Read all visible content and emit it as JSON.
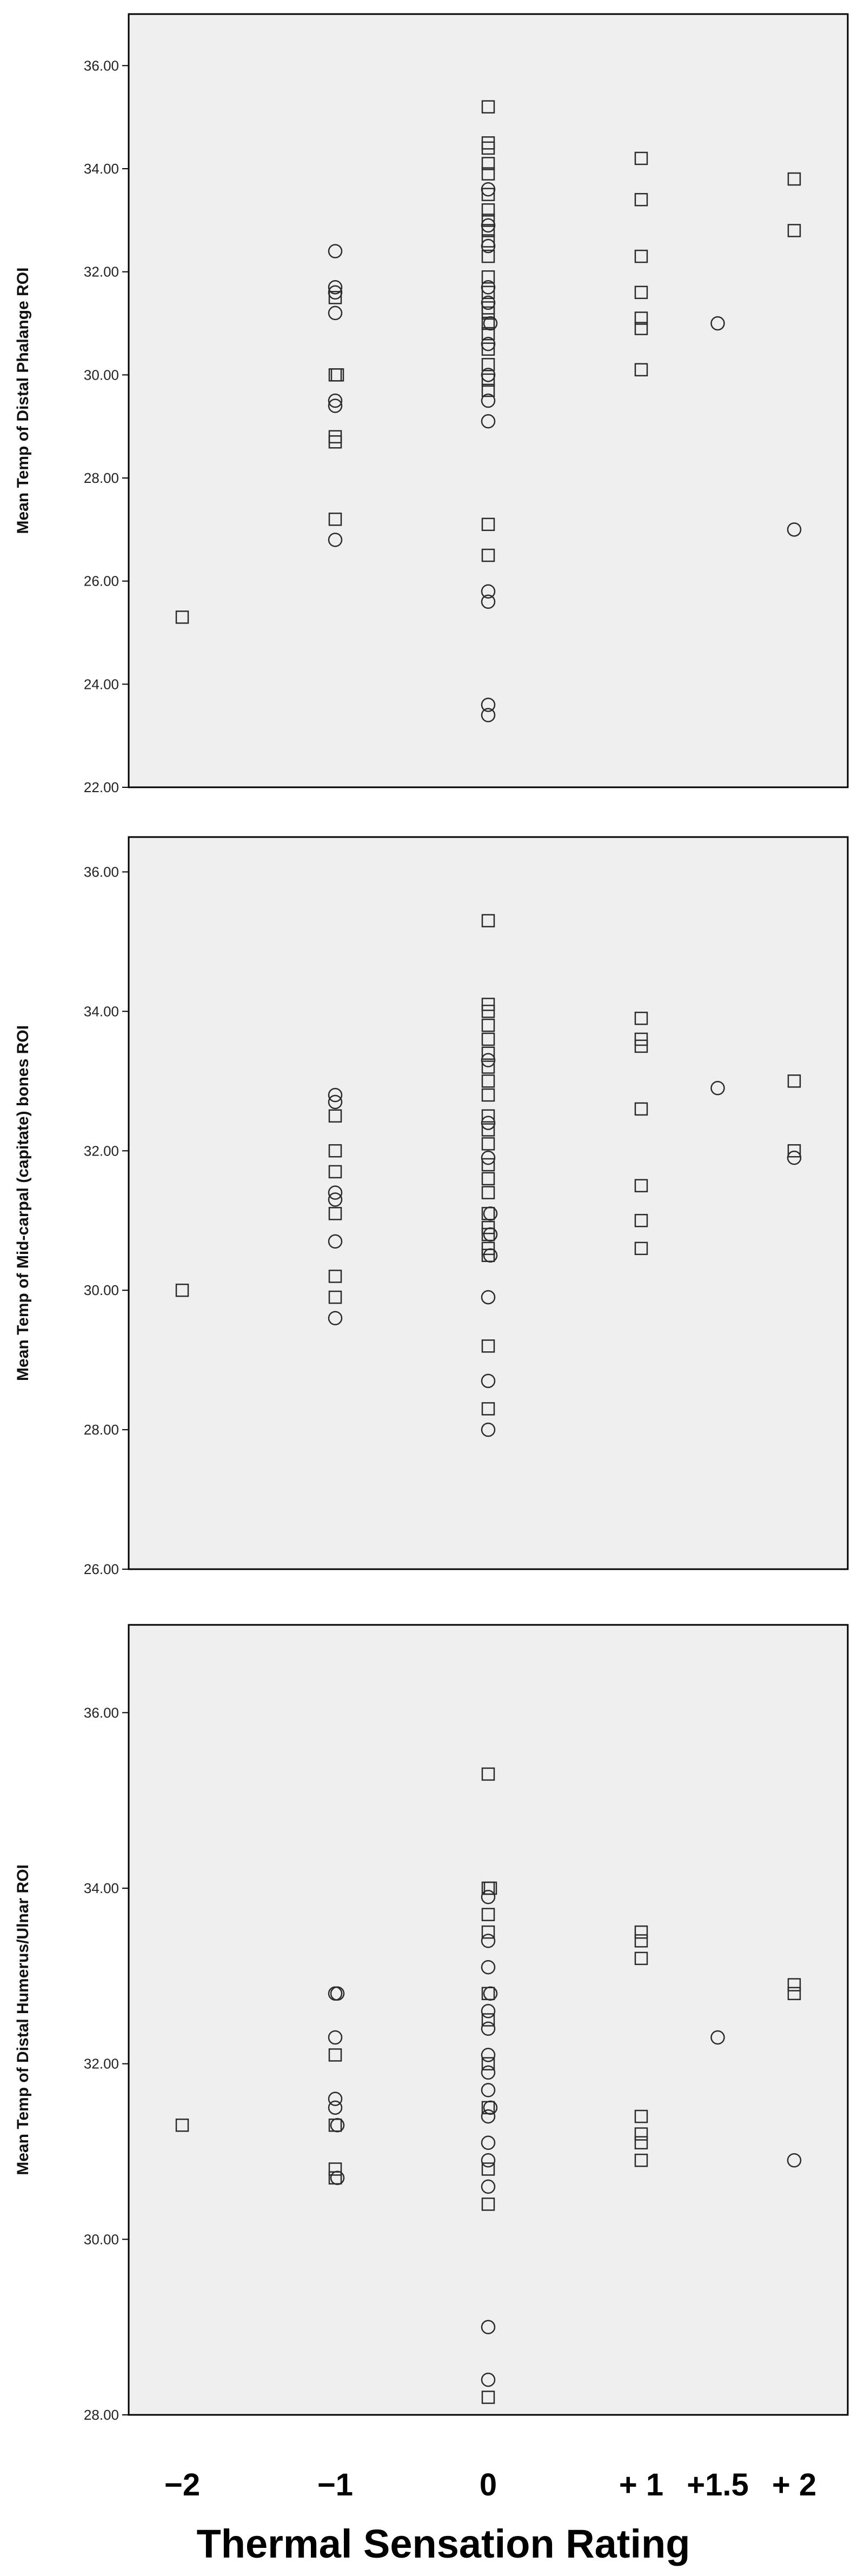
{
  "chart_data": [
    {
      "type": "scatter",
      "ylabel": "Mean Temp of Distal Phalange ROI",
      "ylim": [
        22,
        37
      ],
      "yticks": [
        "22.00",
        "24.00",
        "26.00",
        "28.00",
        "30.00",
        "32.00",
        "34.00",
        "36.00"
      ],
      "grid": false,
      "series": [
        {
          "marker": "square",
          "points": [
            [
              -2,
              25.3
            ],
            [
              -1,
              30.0
            ],
            [
              -1,
              30.0
            ],
            [
              -1,
              28.8
            ],
            [
              -1,
              28.7
            ],
            [
              -1,
              27.2
            ],
            [
              -1,
              31.5
            ],
            [
              0,
              35.2
            ],
            [
              0,
              34.5
            ],
            [
              0,
              34.4
            ],
            [
              0,
              34.1
            ],
            [
              0,
              33.9
            ],
            [
              0,
              33.5
            ],
            [
              0,
              33.2
            ],
            [
              0,
              33.0
            ],
            [
              0,
              32.8
            ],
            [
              0,
              32.6
            ],
            [
              0,
              32.3
            ],
            [
              0,
              31.9
            ],
            [
              0,
              31.6
            ],
            [
              0,
              31.3
            ],
            [
              0,
              31.2
            ],
            [
              0,
              31.0
            ],
            [
              0,
              30.8
            ],
            [
              0,
              30.5
            ],
            [
              0,
              30.2
            ],
            [
              0,
              29.9
            ],
            [
              0,
              29.7
            ],
            [
              0,
              27.1
            ],
            [
              0,
              26.5
            ],
            [
              1,
              34.2
            ],
            [
              1,
              33.4
            ],
            [
              1,
              32.3
            ],
            [
              1,
              31.6
            ],
            [
              1,
              31.1
            ],
            [
              1,
              30.9
            ],
            [
              1,
              30.1
            ],
            [
              2,
              33.8
            ],
            [
              2,
              32.8
            ]
          ]
        },
        {
          "marker": "circle",
          "points": [
            [
              -1,
              32.4
            ],
            [
              -1,
              31.7
            ],
            [
              -1,
              31.6
            ],
            [
              -1,
              31.2
            ],
            [
              -1,
              29.5
            ],
            [
              -1,
              29.4
            ],
            [
              -1,
              26.8
            ],
            [
              0,
              33.6
            ],
            [
              0,
              32.9
            ],
            [
              0,
              32.5
            ],
            [
              0,
              31.7
            ],
            [
              0,
              31.4
            ],
            [
              0,
              31.0
            ],
            [
              0,
              30.6
            ],
            [
              0,
              30.0
            ],
            [
              0,
              29.5
            ],
            [
              0,
              29.1
            ],
            [
              0,
              25.8
            ],
            [
              0,
              25.6
            ],
            [
              0,
              23.6
            ],
            [
              0,
              23.4
            ],
            [
              1.5,
              31.0
            ],
            [
              2,
              27.0
            ]
          ]
        }
      ]
    },
    {
      "type": "scatter",
      "ylabel": "Mean Temp of Mid-carpal (capitate) bones ROI",
      "ylim": [
        26,
        36.5
      ],
      "yticks": [
        "26.00",
        "28.00",
        "30.00",
        "32.00",
        "34.00",
        "36.00"
      ],
      "grid": false,
      "series": [
        {
          "marker": "square",
          "points": [
            [
              -2,
              30.0
            ],
            [
              -1,
              32.5
            ],
            [
              -1,
              32.0
            ],
            [
              -1,
              31.7
            ],
            [
              -1,
              31.1
            ],
            [
              -1,
              30.2
            ],
            [
              -1,
              29.9
            ],
            [
              0,
              35.3
            ],
            [
              0,
              34.1
            ],
            [
              0,
              34.0
            ],
            [
              0,
              33.8
            ],
            [
              0,
              33.6
            ],
            [
              0,
              33.4
            ],
            [
              0,
              33.2
            ],
            [
              0,
              33.0
            ],
            [
              0,
              32.8
            ],
            [
              0,
              32.5
            ],
            [
              0,
              32.3
            ],
            [
              0,
              32.1
            ],
            [
              0,
              31.8
            ],
            [
              0,
              31.6
            ],
            [
              0,
              31.4
            ],
            [
              0,
              31.1
            ],
            [
              0,
              30.9
            ],
            [
              0,
              30.8
            ],
            [
              0,
              30.6
            ],
            [
              0,
              30.5
            ],
            [
              0,
              29.2
            ],
            [
              0,
              28.3
            ],
            [
              1,
              33.9
            ],
            [
              1,
              33.6
            ],
            [
              1,
              33.5
            ],
            [
              1,
              32.6
            ],
            [
              1,
              31.5
            ],
            [
              1,
              31.0
            ],
            [
              1,
              30.6
            ],
            [
              2,
              33.0
            ],
            [
              2,
              32.0
            ]
          ]
        },
        {
          "marker": "circle",
          "points": [
            [
              -1,
              32.8
            ],
            [
              -1,
              32.7
            ],
            [
              -1,
              31.4
            ],
            [
              -1,
              31.3
            ],
            [
              -1,
              30.7
            ],
            [
              -1,
              29.6
            ],
            [
              0,
              33.3
            ],
            [
              0,
              32.4
            ],
            [
              0,
              31.9
            ],
            [
              0,
              31.1
            ],
            [
              0,
              30.8
            ],
            [
              0,
              30.5
            ],
            [
              0,
              29.9
            ],
            [
              0,
              28.7
            ],
            [
              0,
              28.0
            ],
            [
              1.5,
              32.9
            ],
            [
              2,
              31.9
            ]
          ]
        }
      ]
    },
    {
      "type": "scatter",
      "ylabel": "Mean Temp of Distal Humerus/Ulnar ROI",
      "ylim": [
        28,
        37
      ],
      "yticks": [
        "28.00",
        "30.00",
        "32.00",
        "34.00",
        "36.00"
      ],
      "grid": false,
      "series": [
        {
          "marker": "square",
          "points": [
            [
              -2,
              31.3
            ],
            [
              -1,
              32.1
            ],
            [
              -1,
              31.3
            ],
            [
              -1,
              30.8
            ],
            [
              -1,
              30.7
            ],
            [
              0,
              35.3
            ],
            [
              0,
              34.0
            ],
            [
              0,
              34.0
            ],
            [
              0,
              33.7
            ],
            [
              0,
              33.5
            ],
            [
              0,
              32.8
            ],
            [
              0,
              32.5
            ],
            [
              0,
              32.0
            ],
            [
              0,
              31.5
            ],
            [
              0,
              30.8
            ],
            [
              0,
              30.4
            ],
            [
              0,
              28.2
            ],
            [
              1,
              33.5
            ],
            [
              1,
              33.4
            ],
            [
              1,
              33.2
            ],
            [
              1,
              31.4
            ],
            [
              1,
              31.2
            ],
            [
              1,
              31.1
            ],
            [
              1,
              30.9
            ],
            [
              2,
              32.9
            ],
            [
              2,
              32.8
            ]
          ]
        },
        {
          "marker": "circle",
          "points": [
            [
              -1,
              32.8
            ],
            [
              -1,
              32.8
            ],
            [
              -1,
              32.3
            ],
            [
              -1,
              31.6
            ],
            [
              -1,
              31.5
            ],
            [
              -1,
              31.3
            ],
            [
              -1,
              30.7
            ],
            [
              0,
              33.9
            ],
            [
              0,
              33.4
            ],
            [
              0,
              33.1
            ],
            [
              0,
              32.8
            ],
            [
              0,
              32.6
            ],
            [
              0,
              32.4
            ],
            [
              0,
              32.1
            ],
            [
              0,
              31.9
            ],
            [
              0,
              31.7
            ],
            [
              0,
              31.5
            ],
            [
              0,
              31.4
            ],
            [
              0,
              31.1
            ],
            [
              0,
              30.9
            ],
            [
              0,
              30.6
            ],
            [
              0,
              29.0
            ],
            [
              0,
              28.4
            ],
            [
              1.5,
              32.3
            ],
            [
              2,
              30.9
            ]
          ]
        }
      ]
    }
  ],
  "x_axis": {
    "title": "Thermal Sensation Rating",
    "categories": [
      {
        "label": "−2",
        "value": -2
      },
      {
        "label": "−1",
        "value": -1
      },
      {
        "label": "0",
        "value": 0
      },
      {
        "label": "+ 1",
        "value": 1
      },
      {
        "label": "+1.5",
        "value": 1.5
      },
      {
        "label": "+ 2",
        "value": 2
      }
    ],
    "xlim": [
      -2.35,
      2.35
    ]
  },
  "colors": {
    "plot_background": "#efefef",
    "frame": "#000000",
    "marker_stroke": "#2b2b2b"
  }
}
